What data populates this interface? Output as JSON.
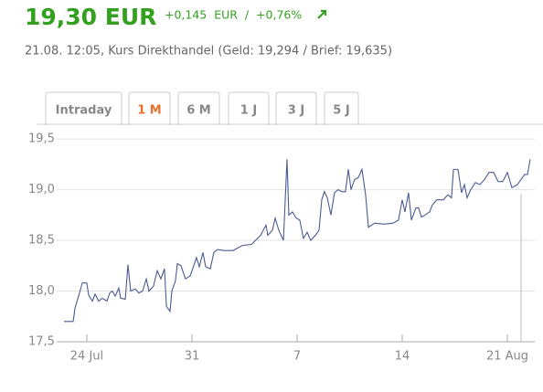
{
  "header": {
    "price": "19,30 EUR",
    "change": "+0,145  EUR  /  +0,76%",
    "subtitle": "21.08. 12:05, Kurs Direkthandel (Geld: 19,294 / Brief: 19,635)"
  },
  "tabs": {
    "items": [
      "Intraday",
      "1 M",
      "6 M",
      "1 J",
      "3 J",
      "5 J"
    ],
    "active": 1
  },
  "chart_data": {
    "type": "line",
    "x": [
      -1.52,
      -0.91,
      -0.79,
      -0.49,
      -0.3,
      0,
      0.12,
      0.37,
      0.55,
      0.79,
      1.03,
      1.34,
      1.52,
      1.7,
      1.89,
      2.13,
      2.25,
      2.56,
      2.74,
      2.92,
      3.23,
      3.47,
      3.71,
      3.96,
      4.14,
      4.44,
      4.69,
      4.93,
      5.17,
      5.3,
      5.54,
      5.66,
      5.9,
      6.03,
      6.27,
      6.57,
      6.88,
      7.12,
      7.3,
      7.49,
      7.73,
      7.91,
      8.22,
      8.46,
      8.7,
      9.13,
      9.74,
      10.35,
      10.96,
      11.57,
      11.93,
      12.05,
      12.36,
      12.54,
      12.78,
      13.09,
      13.33,
      13.45,
      13.69,
      13.94,
      14.18,
      14.42,
      14.67,
      14.91,
      15.22,
      15.46,
      15.64,
      15.82,
      16.01,
      16.25,
      16.49,
      16.74,
      16.98,
      17.22,
      17.41,
      17.59,
      17.83,
      18.08,
      18.32,
      18.56,
      18.75,
      19.17,
      19.78,
      20.39,
      20.75,
      21.0,
      21.18,
      21.42,
      21.61,
      21.91,
      22.09,
      22.28,
      22.52,
      22.82,
      23.01,
      23.31,
      23.74,
      24.04,
      24.28,
      24.41,
      24.71,
      24.95,
      25.14,
      25.32,
      25.56,
      25.87,
      26.17,
      26.48,
      26.78,
      27.08,
      27.39,
      27.69,
      28.0,
      28.3,
      28.67,
      28.91,
      29.15,
      29.34,
      29.52
    ],
    "series": [
      {
        "color": "#4d5b94",
        "values": [
          17.7,
          17.7,
          17.83,
          17.98,
          18.08,
          18.08,
          17.96,
          17.9,
          17.97,
          17.9,
          17.93,
          17.9,
          17.98,
          18.0,
          17.95,
          18.03,
          17.93,
          17.92,
          18.26,
          18.0,
          18.02,
          17.98,
          18.0,
          18.12,
          18.0,
          18.05,
          18.2,
          18.12,
          18.22,
          17.85,
          17.8,
          18.0,
          18.1,
          18.27,
          18.25,
          18.12,
          18.15,
          18.25,
          18.33,
          18.24,
          18.38,
          18.24,
          18.22,
          18.38,
          18.41,
          18.4,
          18.4,
          18.45,
          18.46,
          18.55,
          18.65,
          18.55,
          18.6,
          18.72,
          18.6,
          18.5,
          19.3,
          18.75,
          18.78,
          18.72,
          18.7,
          18.52,
          18.58,
          18.5,
          18.55,
          18.6,
          18.9,
          18.98,
          18.92,
          18.75,
          18.97,
          19.0,
          18.98,
          18.98,
          19.2,
          19.0,
          19.1,
          19.12,
          19.2,
          18.95,
          18.63,
          18.67,
          18.66,
          18.67,
          18.7,
          18.9,
          18.78,
          18.97,
          18.7,
          18.82,
          18.82,
          18.73,
          18.75,
          18.78,
          18.85,
          18.9,
          18.9,
          18.95,
          18.92,
          19.2,
          19.2,
          18.97,
          19.05,
          18.92,
          19.0,
          19.07,
          19.05,
          19.1,
          19.17,
          19.17,
          19.08,
          19.08,
          19.17,
          19.02,
          19.05,
          19.1,
          19.15,
          19.15,
          19.3
        ]
      }
    ],
    "xlim": [
      -1.52,
      29.52
    ],
    "xticks": [
      {
        "value": 0,
        "label": "24 Jul"
      },
      {
        "value": 7,
        "label": "31"
      },
      {
        "value": 14,
        "label": "7"
      },
      {
        "value": 21,
        "label": "14"
      },
      {
        "value": 28,
        "label": "21 Aug"
      }
    ],
    "ylim": [
      17.5,
      19.6
    ],
    "yticks": [
      {
        "value": 17.5,
        "label": "17,5"
      },
      {
        "value": 18,
        "label": "18,0"
      },
      {
        "value": 18.5,
        "label": "18,5"
      },
      {
        "value": 19,
        "label": "19,0"
      },
      {
        "value": 19.5,
        "label": "19,5"
      }
    ],
    "grid": true
  }
}
